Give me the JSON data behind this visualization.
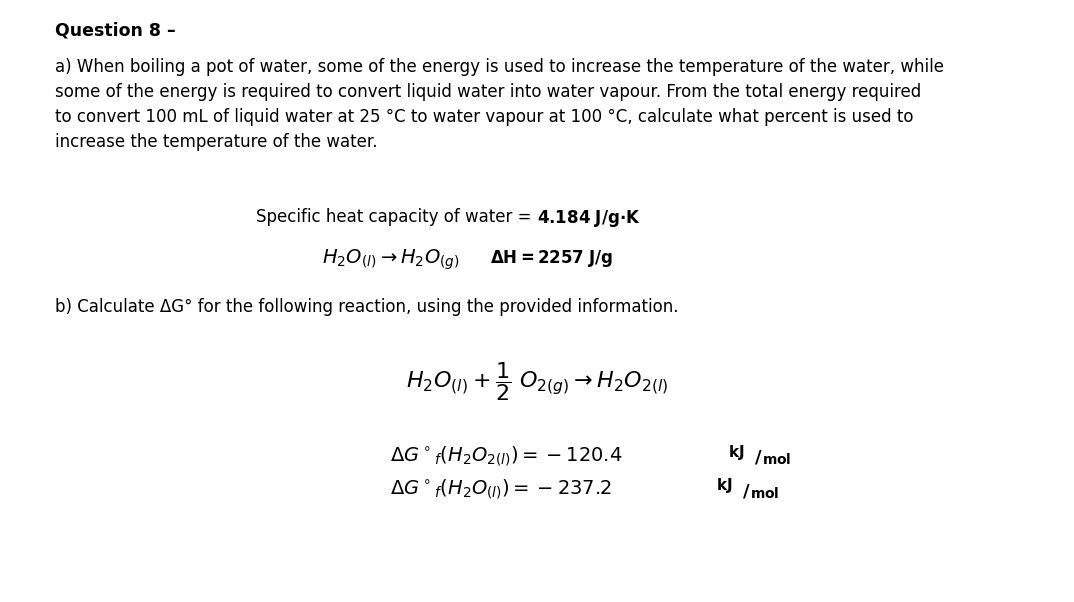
{
  "background_color": "#ffffff",
  "title": "Question 8 –",
  "para_a": "a) When boiling a pot of water, some of the energy is used to increase the temperature of the water, while\nsome of the energy is required to convert liquid water into water vapour. From the total energy required\nto convert 100 mL of liquid water at 25 °C to water vapour at 100 °C, calculate what percent is used to\nincrease the temperature of the water.",
  "part_b_text": "b) Calculate ΔG° for the following reaction, using the provided information.",
  "title_fs": 12.5,
  "body_fs": 12.0,
  "formula_fs": 14.0,
  "small_fs": 11.0
}
